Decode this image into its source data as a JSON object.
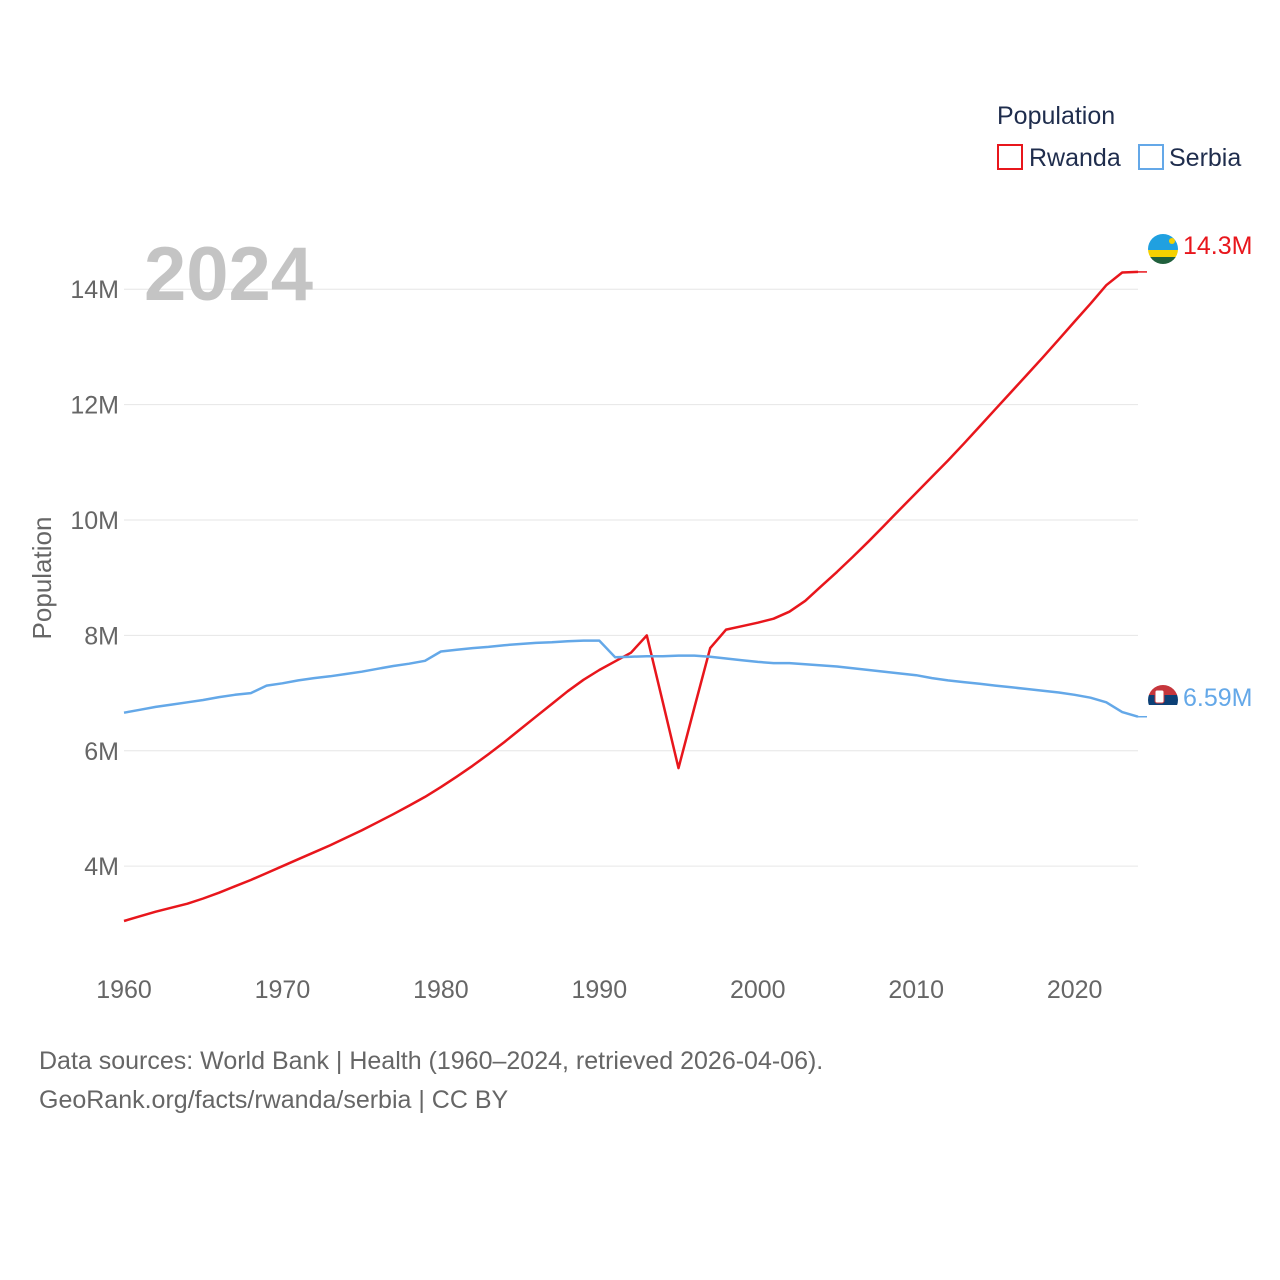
{
  "year_label": "2024",
  "legend": {
    "title": "Population"
  },
  "footer": {
    "source_line": "Data sources: World Bank | Health (1960–2024, retrieved 2026-04-06).",
    "url_line": "GeoRank.org/facts/rwanda/serbia | CC BY"
  },
  "chart_data": {
    "type": "line",
    "title": "Population",
    "xlabel": "",
    "ylabel": "Population",
    "xlim": [
      1960,
      2024
    ],
    "ylim": [
      2200000,
      15200000
    ],
    "x_ticks": [
      1960,
      1970,
      1980,
      1990,
      2000,
      2010,
      2020
    ],
    "x_tick_labels": [
      "1960",
      "1970",
      "1980",
      "1990",
      "2000",
      "2010",
      "2020"
    ],
    "y_ticks": [
      4000000,
      6000000,
      8000000,
      10000000,
      12000000,
      14000000
    ],
    "y_tick_labels": [
      "4M",
      "6M",
      "8M",
      "10M",
      "12M",
      "14M"
    ],
    "x": [
      1960,
      1961,
      1962,
      1963,
      1964,
      1965,
      1966,
      1967,
      1968,
      1969,
      1970,
      1971,
      1972,
      1973,
      1974,
      1975,
      1976,
      1977,
      1978,
      1979,
      1980,
      1981,
      1982,
      1983,
      1984,
      1985,
      1986,
      1987,
      1988,
      1989,
      1990,
      1991,
      1992,
      1993,
      1994,
      1995,
      1996,
      1997,
      1998,
      1999,
      2000,
      2001,
      2002,
      2003,
      2004,
      2005,
      2006,
      2007,
      2008,
      2009,
      2010,
      2011,
      2012,
      2013,
      2014,
      2015,
      2016,
      2017,
      2018,
      2019,
      2020,
      2021,
      2022,
      2023,
      2024
    ],
    "series": [
      {
        "name": "Rwanda",
        "color": "#e8161c",
        "end_label": "14.3M",
        "values": [
          3050000,
          3130000,
          3210000,
          3280000,
          3350000,
          3440000,
          3540000,
          3650000,
          3760000,
          3880000,
          4000000,
          4120000,
          4240000,
          4360000,
          4490000,
          4620000,
          4760000,
          4900000,
          5050000,
          5200000,
          5370000,
          5550000,
          5740000,
          5940000,
          6150000,
          6370000,
          6590000,
          6810000,
          7030000,
          7230000,
          7400000,
          7550000,
          7700000,
          8000000,
          6850000,
          5700000,
          6750000,
          7780000,
          8100000,
          8160000,
          8220000,
          8290000,
          8410000,
          8600000,
          8850000,
          9100000,
          9360000,
          9630000,
          9910000,
          10190000,
          10470000,
          10750000,
          11030000,
          11320000,
          11620000,
          11920000,
          12220000,
          12520000,
          12820000,
          13130000,
          13440000,
          13750000,
          14070000,
          14290000,
          14300000
        ]
      },
      {
        "name": "Serbia",
        "color": "#64a8e8",
        "end_label": "6.59M",
        "values": [
          6660000,
          6710000,
          6760000,
          6800000,
          6840000,
          6880000,
          6930000,
          6970000,
          7000000,
          7130000,
          7170000,
          7220000,
          7260000,
          7290000,
          7330000,
          7370000,
          7420000,
          7470000,
          7510000,
          7560000,
          7720000,
          7750000,
          7780000,
          7800000,
          7830000,
          7850000,
          7870000,
          7880000,
          7900000,
          7910000,
          7910000,
          7620000,
          7630000,
          7640000,
          7640000,
          7650000,
          7650000,
          7630000,
          7600000,
          7570000,
          7540000,
          7520000,
          7520000,
          7500000,
          7480000,
          7460000,
          7430000,
          7400000,
          7370000,
          7340000,
          7310000,
          7260000,
          7220000,
          7190000,
          7160000,
          7130000,
          7100000,
          7070000,
          7040000,
          7010000,
          6970000,
          6920000,
          6840000,
          6670000,
          6590000
        ]
      }
    ]
  }
}
